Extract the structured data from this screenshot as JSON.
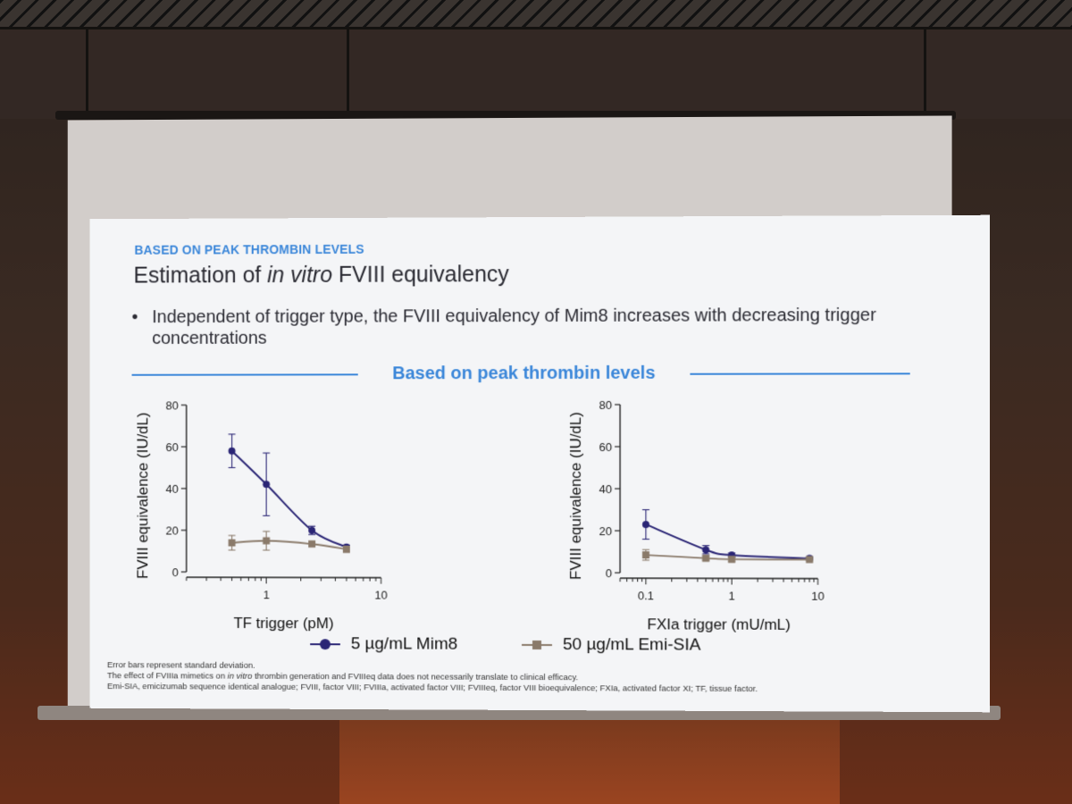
{
  "slide": {
    "section_label": "BASED ON PEAK THROMBIN LEVELS",
    "title_part1": "Estimation of ",
    "title_italic": "in vitro",
    "title_part2": " FVIII equivalency",
    "bullet_marker": "•",
    "bullet_text": "Independent of trigger type, the FVIII equivalency of Mim8 increases with decreasing trigger concentrations",
    "divider_title": "Based on peak thrombin levels"
  },
  "legend": {
    "items": [
      {
        "label": "5 µg/mL Mim8",
        "color": "#2a2575",
        "marker": "circle"
      },
      {
        "label": "50 µg/mL Emi-SIA",
        "color": "#8a7a6a",
        "marker": "square"
      }
    ]
  },
  "footnotes": {
    "line1": "Error bars represent standard deviation.",
    "line2_part1": "The effect of FVIIIa mimetics on ",
    "line2_italic": "in vitro",
    "line2_part2": " thrombin generation and FVIIIeq data does not necessarily translate to clinical efficacy.",
    "line3": "Emi-SIA, emicizumab sequence identical analogue; FVIII, factor VIII; FVIIIa, activated factor VIII; FVIIIeq, factor VIII bioequivalence; FXIa, activated factor XI; TF, tissue factor."
  },
  "chart_data": [
    {
      "type": "line",
      "xlabel": "TF trigger (pM)",
      "ylabel": "FVIII equivalence (IU/dL)",
      "x_scale": "log",
      "xlim": [
        0.2,
        10
      ],
      "xticks": [
        1,
        10
      ],
      "ylim": [
        0,
        80
      ],
      "yticks": [
        0,
        20,
        40,
        60,
        80
      ],
      "series": [
        {
          "name": "5 µg/mL Mim8",
          "color": "#2a2575",
          "marker": "circle",
          "x": [
            0.5,
            1,
            2.5,
            5
          ],
          "y": [
            58,
            42,
            20,
            12
          ],
          "error": [
            8,
            15,
            2,
            1
          ]
        },
        {
          "name": "50 µg/mL Emi-SIA",
          "color": "#8a7a6a",
          "marker": "square",
          "x": [
            0.5,
            1,
            2.5,
            5
          ],
          "y": [
            14,
            15,
            13.5,
            11
          ],
          "error": [
            3.5,
            4.5,
            1,
            1.5
          ]
        }
      ]
    },
    {
      "type": "line",
      "xlabel": "FXIa trigger (mU/mL)",
      "ylabel": "FVIII equivalence (IU/dL)",
      "x_scale": "log",
      "xlim": [
        0.05,
        10
      ],
      "xticks": [
        0.1,
        1,
        10
      ],
      "ylim": [
        0,
        80
      ],
      "yticks": [
        0,
        20,
        40,
        60,
        80
      ],
      "series": [
        {
          "name": "5 µg/mL Mim8",
          "color": "#2a2575",
          "marker": "circle",
          "x": [
            0.1,
            0.5,
            1,
            8
          ],
          "y": [
            23,
            11,
            8.5,
            7
          ],
          "error": [
            7,
            2,
            1,
            0.5
          ]
        },
        {
          "name": "50 µg/mL Emi-SIA",
          "color": "#8a7a6a",
          "marker": "square",
          "x": [
            0.1,
            0.5,
            1,
            8
          ],
          "y": [
            8.5,
            7,
            6.5,
            6.5
          ],
          "error": [
            2.5,
            1,
            1,
            0.5
          ]
        }
      ]
    }
  ]
}
